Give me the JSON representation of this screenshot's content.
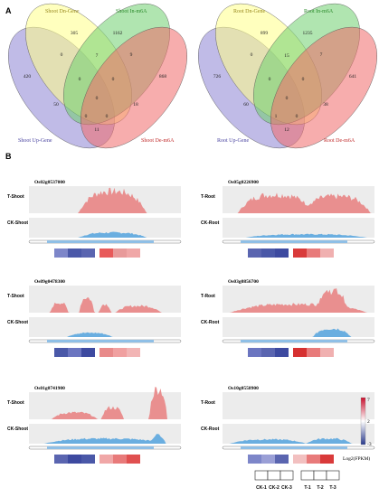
{
  "panel_a": {
    "label": "A",
    "shoot": {
      "set_labels": [
        "Shoot Dn-Gene",
        "Shoot In-m6A",
        "Shoot Up-Gene",
        "Shoot De-m6A"
      ],
      "counts": [
        "305",
        "1162",
        "420",
        "868",
        "0",
        "7",
        "9",
        "0",
        "0",
        "0",
        "18",
        "50",
        "0",
        "0",
        "11"
      ]
    },
    "root": {
      "set_labels": [
        "Root Dn-Gene",
        "Root In-m6A",
        "Root Up-Gene",
        "Root De-m6A"
      ],
      "counts": [
        "899",
        "1235",
        "726",
        "641",
        "0",
        "15",
        "7",
        "0",
        "0",
        "0",
        "38",
        "60",
        "1",
        "0",
        "12"
      ]
    }
  },
  "panel_b": {
    "label": "B",
    "tracks": [
      {
        "gene": "Os02g0537000",
        "t_label": "T-Shoot",
        "ck_label": "CK-Shoot"
      },
      {
        "gene": "Os05g0226900",
        "t_label": "T-Root",
        "ck_label": "CK-Root"
      },
      {
        "gene": "Os09g0478300",
        "t_label": "T-Shoot",
        "ck_label": "CK-Shoot"
      },
      {
        "gene": "Os03g0856700",
        "t_label": "T-Root",
        "ck_label": "CK-Root"
      },
      {
        "gene": "Os01g0741900",
        "t_label": "T-Shoot",
        "ck_label": "CK-Shoot"
      },
      {
        "gene": "Os10g0558900",
        "t_label": "T-Root",
        "ck_label": "CK-Root"
      }
    ],
    "legend": {
      "scale_max": "7",
      "scale_mid": "2",
      "scale_min": "-3",
      "title": "Log2(FPKM)",
      "sample_labels": [
        "CK-1",
        "CK-2",
        "CK-3",
        "T-1",
        "T-2",
        "T-3"
      ]
    },
    "colors": {
      "t_track": "#e98f8f",
      "ck_track": "#6aaee0",
      "gene_model": "#8fbfe6"
    }
  }
}
